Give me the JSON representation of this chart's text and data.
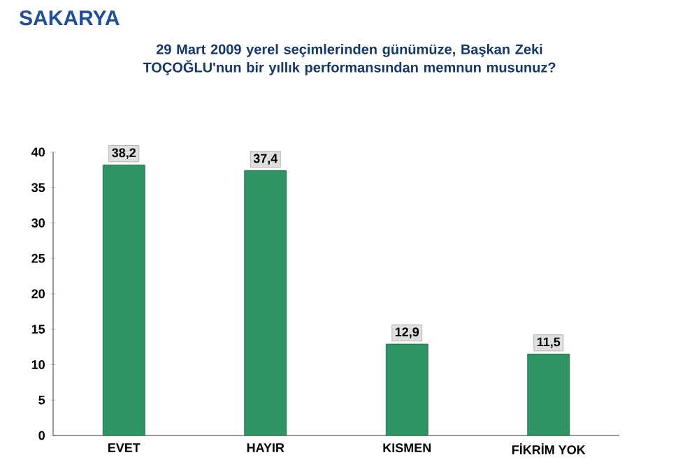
{
  "chart_data": {
    "type": "bar",
    "title": "SAKARYA",
    "subtitle": "29 Mart 2009 yerel seçimlerinden günümüze, Başkan Zeki TOÇOĞLU'nun bir yıllık performansından memnun musunuz?",
    "categories": [
      "EVET",
      "HAYIR",
      "KISMEN",
      "FİKRİM YOK"
    ],
    "values": [
      38.2,
      37.4,
      12.9,
      11.5
    ],
    "value_labels": [
      "38,2",
      "37,4",
      "12,9",
      "11,5"
    ],
    "color": "#2f9464",
    "ylim": [
      0,
      40
    ],
    "yticks": [
      0,
      5,
      10,
      15,
      20,
      25,
      30,
      35,
      40
    ],
    "grid": false
  }
}
